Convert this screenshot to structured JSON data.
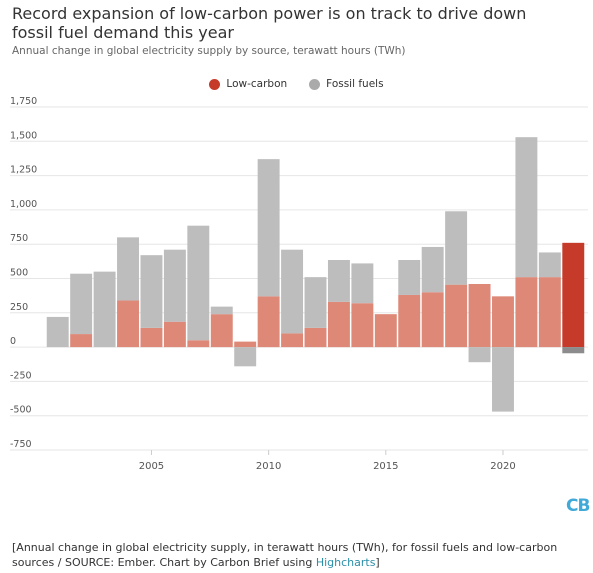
{
  "title": "Record expansion of low-carbon power is on track to drive down fossil fuel demand this year",
  "subtitle": "Annual change in global electricity supply by source, terawatt hours (TWh)",
  "logo_text": "CB",
  "caption": {
    "text": "[Annual change in global electricity supply, in terawatt hours (TWh), for fossil fuels and low-carbon sources / SOURCE: Ember. Chart by Carbon Brief using ",
    "link": "Highcharts",
    "close": "]"
  },
  "colors": {
    "low_carbon": "#de8878",
    "low_carbon_highlight": "#c63a2a",
    "fossil": "#bdbdbd",
    "fossil_highlight": "#8c8c8c",
    "legend_low_carbon": "#c63a2a",
    "legend_fossil": "#aaaaaa",
    "grid": "#e6e6e6"
  },
  "chart_data": {
    "type": "bar",
    "stacked": true,
    "x": [
      2001,
      2002,
      2003,
      2004,
      2005,
      2006,
      2007,
      2008,
      2009,
      2010,
      2011,
      2012,
      2013,
      2014,
      2015,
      2016,
      2017,
      2018,
      2019,
      2020,
      2021,
      2022,
      2023
    ],
    "series": [
      {
        "name": "Low-carbon",
        "values": [
          0,
          95,
          0,
          340,
          140,
          185,
          50,
          240,
          40,
          370,
          100,
          140,
          330,
          320,
          240,
          380,
          400,
          455,
          460,
          370,
          510,
          510,
          760
        ]
      },
      {
        "name": "Fossil fuels",
        "values": [
          220,
          440,
          550,
          460,
          530,
          525,
          835,
          55,
          -140,
          1000,
          610,
          370,
          305,
          290,
          0,
          255,
          330,
          535,
          -110,
          -470,
          1020,
          180,
          -45
        ]
      }
    ],
    "highlight_x": 2023,
    "x_ticks": [
      2005,
      2010,
      2015,
      2020
    ],
    "y_ticks": [
      -750,
      -500,
      -250,
      0,
      250,
      500,
      750,
      1000,
      1250,
      1500,
      1750
    ],
    "y_tick_labels": [
      "-750",
      "-500",
      "-250",
      "0",
      "250",
      "500",
      "750",
      "1,000",
      "1,250",
      "1,500",
      "1,750"
    ],
    "ylim": [
      -750,
      1750
    ],
    "grid": true,
    "legend_position": "top-center"
  }
}
